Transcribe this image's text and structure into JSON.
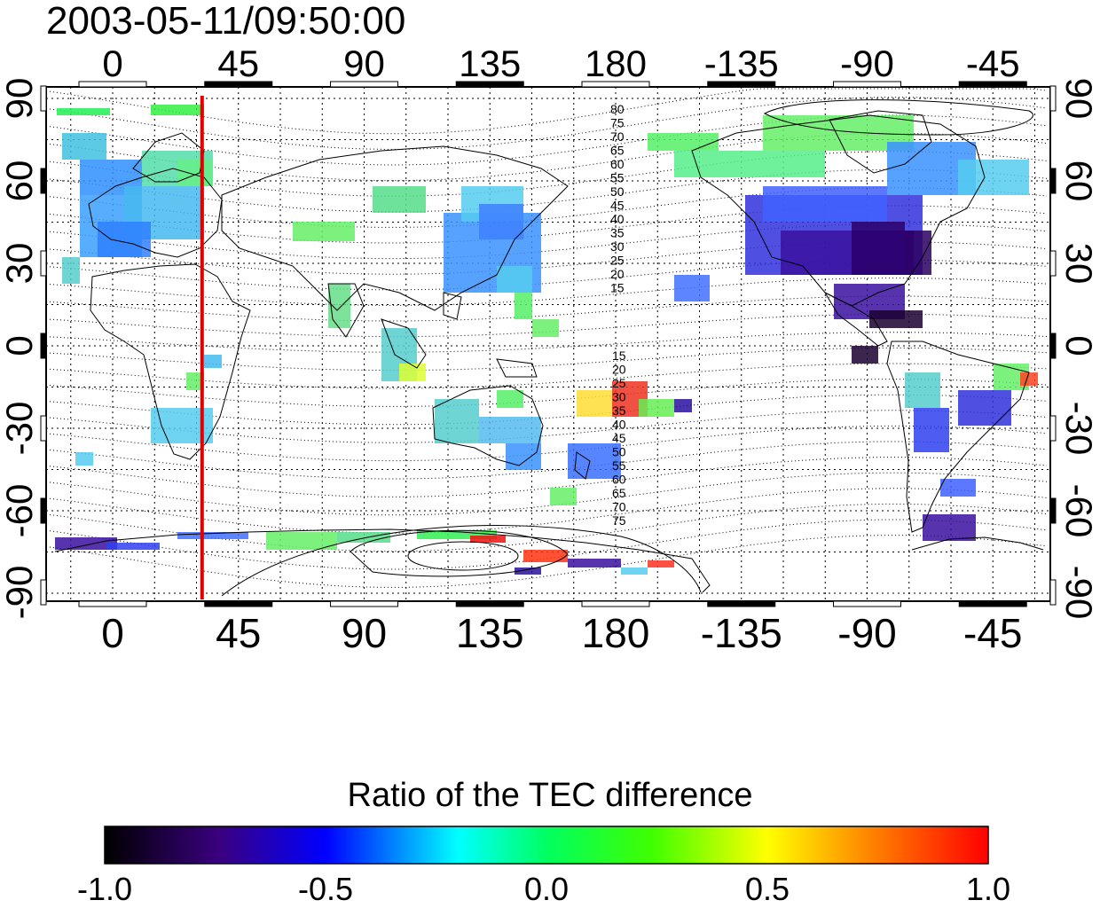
{
  "title": "2003-05-11/09:50:00",
  "map": {
    "lon_ticks_top": [
      "0",
      "45",
      "90",
      "135",
      "180",
      "-135",
      "-90",
      "-45"
    ],
    "lon_ticks_bottom": [
      "0",
      "45",
      "90",
      "135",
      "180",
      "-135",
      "-90",
      "-45"
    ],
    "lat_ticks_left": [
      "90",
      "60",
      "30",
      "0",
      "-30",
      "-60",
      "-90"
    ],
    "lat_ticks_right": [
      "90",
      "60",
      "30",
      "0",
      "-30",
      "-60",
      "-90"
    ],
    "contour_labels_north": [
      "80",
      "75",
      "70",
      "65",
      "60",
      "55",
      "50",
      "45",
      "40",
      "35",
      "30",
      "25",
      "20",
      "15"
    ],
    "contour_labels_south": [
      "15",
      "20",
      "25",
      "30",
      "35",
      "40",
      "45",
      "50",
      "55",
      "60",
      "65",
      "70",
      "75"
    ],
    "red_line_longitude": 32,
    "grid": true
  },
  "colorbar": {
    "title": "Ratio of the TEC difference",
    "ticks": [
      "-1.0",
      "-0.5",
      "0.0",
      "0.5",
      "1.0"
    ],
    "range": [
      -1.0,
      1.0
    ],
    "colors": [
      "#000000",
      "#3a0080",
      "#0000ff",
      "#00ffff",
      "#00ff00",
      "#ffff00",
      "#ff8000",
      "#ff0000"
    ]
  }
}
